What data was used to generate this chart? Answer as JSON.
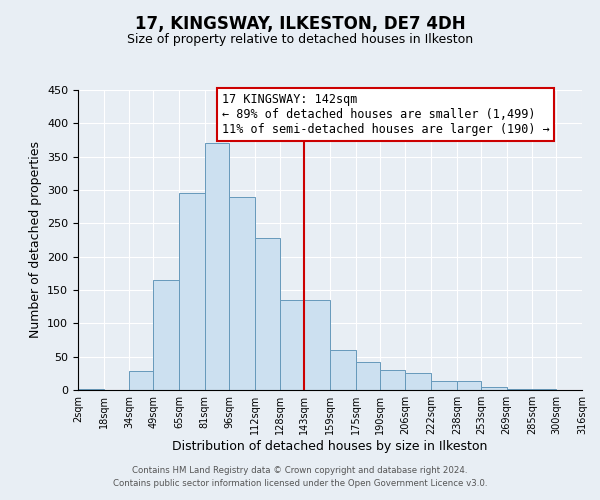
{
  "title": "17, KINGSWAY, ILKESTON, DE7 4DH",
  "subtitle": "Size of property relative to detached houses in Ilkeston",
  "xlabel": "Distribution of detached houses by size in Ilkeston",
  "ylabel": "Number of detached properties",
  "bar_edges": [
    2,
    18,
    34,
    49,
    65,
    81,
    96,
    112,
    128,
    143,
    159,
    175,
    190,
    206,
    222,
    238,
    253,
    269,
    285,
    300,
    316
  ],
  "bar_heights": [
    2,
    0,
    29,
    165,
    295,
    370,
    289,
    228,
    135,
    135,
    60,
    42,
    30,
    25,
    13,
    14,
    5,
    2,
    2,
    0,
    0
  ],
  "bar_color": "#cce0f0",
  "bar_edgecolor": "#6699bb",
  "vline_x": 143,
  "vline_color": "#cc0000",
  "annotation_box_text": "17 KINGSWAY: 142sqm\n← 89% of detached houses are smaller (1,499)\n11% of semi-detached houses are larger (190) →",
  "annotation_box_color": "#cc0000",
  "annotation_box_fill": "#ffffff",
  "ylim": [
    0,
    450
  ],
  "yticks": [
    0,
    50,
    100,
    150,
    200,
    250,
    300,
    350,
    400,
    450
  ],
  "xtick_labels": [
    "2sqm",
    "18sqm",
    "34sqm",
    "49sqm",
    "65sqm",
    "81sqm",
    "96sqm",
    "112sqm",
    "128sqm",
    "143sqm",
    "159sqm",
    "175sqm",
    "190sqm",
    "206sqm",
    "222sqm",
    "238sqm",
    "253sqm",
    "269sqm",
    "285sqm",
    "300sqm",
    "316sqm"
  ],
  "background_color": "#e8eef4",
  "grid_color": "#ffffff",
  "footer_text": "Contains HM Land Registry data © Crown copyright and database right 2024.\nContains public sector information licensed under the Open Government Licence v3.0.",
  "title_fontsize": 12,
  "subtitle_fontsize": 9,
  "annotation_fontsize": 8.5
}
